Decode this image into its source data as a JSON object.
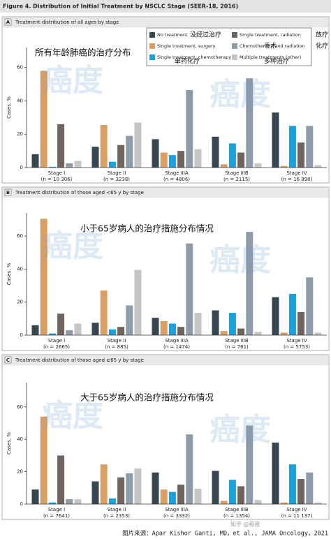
{
  "title": "Figure 4. Distribution of Initial Treatment by NSCLC Stage (SEER-18, 2016)",
  "watermark": "癌度",
  "footer": {
    "handle": "知乎 @癌度",
    "credit": "图片来源：Apar Kishor Ganti, MD，et al., JAMA Oncology，2021"
  },
  "chart_data": [
    {
      "type": "bar",
      "panel": "A",
      "title": "Treatment distribution of all ages by stage",
      "annotation": "所有年龄肺癌的治疗分布",
      "y_label": "Cases, %",
      "ylim": [
        0,
        72
      ],
      "yticks": [
        0,
        20,
        40,
        60
      ],
      "categories": [
        "Stage I",
        "Stage II",
        "Stage IIIA",
        "Stage IIIB",
        "Stage IV"
      ],
      "n_labels": [
        "(n = 10 306)",
        "(n = 3238)",
        "(n = 4806)",
        "(n = 2115)",
        "(n = 16 890)"
      ],
      "legend_notes": [
        "没经过治疗",
        "手术",
        "单药化疗",
        "放疗",
        "化疗",
        "多种治疗"
      ],
      "series": [
        {
          "name": "No treatment",
          "color": "#37474f",
          "values": [
            8,
            12.5,
            17,
            18.5,
            33
          ]
        },
        {
          "name": "Single treatment, surgery",
          "color": "#d9a066",
          "values": [
            58,
            25.5,
            9,
            2,
            1
          ]
        },
        {
          "name": "Single treatment, chemotherapy",
          "color": "#1aa0db",
          "values": [
            0.5,
            3.5,
            7.5,
            14.5,
            25
          ]
        },
        {
          "name": "Single treatment, radiation",
          "color": "#6e6560",
          "values": [
            26,
            13.5,
            10,
            9,
            15
          ]
        },
        {
          "name": "Chemotherapy and radiation",
          "color": "#8d9ca8",
          "values": [
            2.5,
            19,
            46.5,
            53.5,
            25
          ]
        },
        {
          "name": "Multiple treatments (other)",
          "color": "#c6c6c6",
          "values": [
            4,
            27,
            11,
            2.5,
            1.5
          ]
        }
      ]
    },
    {
      "type": "bar",
      "panel": "B",
      "title": "Treatment distribution of those aged <65 y by stage",
      "annotation": "小于65岁病人的治疗措施分布情况",
      "y_label": "Cases, %",
      "ylim": [
        0,
        74
      ],
      "yticks": [
        0,
        20,
        40,
        60
      ],
      "categories": [
        "Stage I",
        "Stage II",
        "Stage IIIA",
        "Stage IIIB",
        "Stage IV"
      ],
      "n_labels": [
        "(n = 2665)",
        "(n = 885)",
        "(n = 1474)",
        "(n = 761)",
        "(n = 5753)"
      ],
      "series": [
        {
          "values": [
            6,
            7.5,
            10.5,
            15,
            23
          ]
        },
        {
          "values": [
            70.5,
            27,
            8.5,
            2.5,
            1.5
          ]
        },
        {
          "values": [
            1,
            3.5,
            7,
            13.5,
            25
          ]
        },
        {
          "values": [
            13,
            5,
            5,
            4,
            14
          ]
        },
        {
          "values": [
            3,
            18,
            55.5,
            62.5,
            35
          ]
        },
        {
          "values": [
            7,
            39.5,
            13.5,
            2,
            1.5
          ]
        }
      ]
    },
    {
      "type": "bar",
      "panel": "C",
      "title": "Treatment distribution of those aged ≥65 y by stage",
      "annotation": "大于65岁病人的治疗措施分布情况",
      "y_label": "Cases, %",
      "ylim": [
        0,
        75
      ],
      "yticks": [
        0,
        20,
        40,
        60
      ],
      "categories": [
        "Stage I",
        "Stage II",
        "Stage IIIA",
        "Stage IIIB",
        "Stage IV"
      ],
      "n_labels": [
        "(n = 7641)",
        "(n = 2353)",
        "(n = 3332)",
        "(n = 1354)",
        "(n = 11 137)"
      ],
      "series": [
        {
          "values": [
            9,
            14,
            19.5,
            20.5,
            38
          ]
        },
        {
          "values": [
            54,
            24.5,
            9,
            2,
            1
          ]
        },
        {
          "values": [
            1,
            3.5,
            7.5,
            15,
            24.5
          ]
        },
        {
          "values": [
            30,
            16.5,
            12,
            11,
            15.5
          ]
        },
        {
          "values": [
            3,
            19,
            43,
            48.5,
            19.5
          ]
        },
        {
          "values": [
            3,
            22,
            9.5,
            2.5,
            1
          ]
        }
      ]
    }
  ]
}
